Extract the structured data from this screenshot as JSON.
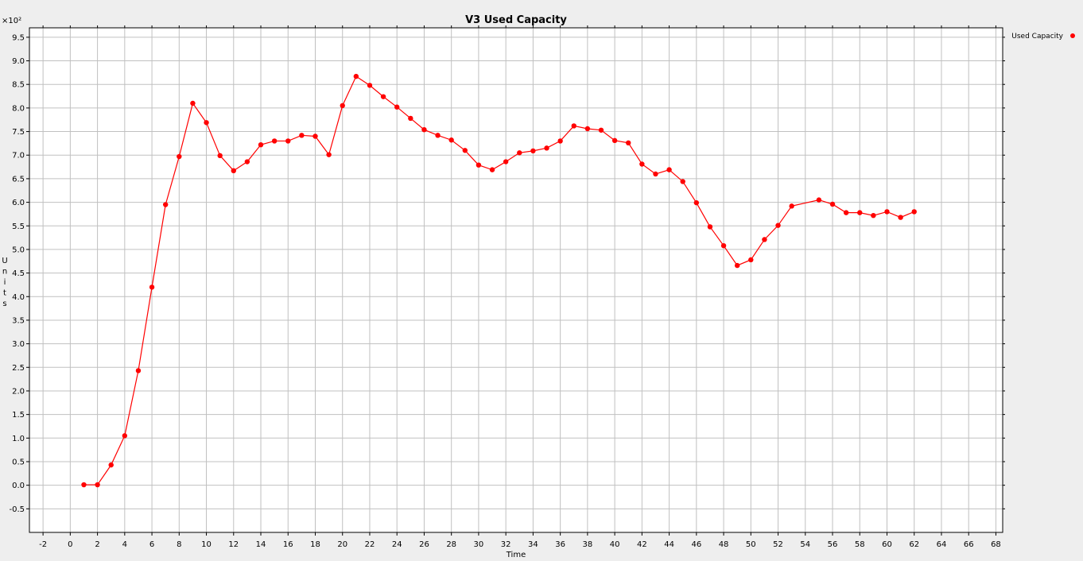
{
  "chart_data": {
    "type": "line",
    "title": "V3 Used Capacity",
    "xlabel": "Time",
    "ylabel": "Units",
    "y_multiplier": "×10²",
    "xlim": [
      -3,
      68.5
    ],
    "ylim": [
      -1,
      9.7
    ],
    "x_ticks": [
      -2,
      0,
      2,
      4,
      6,
      8,
      10,
      12,
      14,
      16,
      18,
      20,
      22,
      24,
      26,
      28,
      30,
      32,
      34,
      36,
      38,
      40,
      42,
      44,
      46,
      48,
      50,
      52,
      54,
      56,
      58,
      60,
      62,
      64,
      66,
      68
    ],
    "y_ticks": [
      "-0.5",
      "0.0",
      "0.5",
      "1.0",
      "1.5",
      "2.0",
      "2.5",
      "3.0",
      "3.5",
      "4.0",
      "4.5",
      "5.0",
      "5.5",
      "6.0",
      "6.5",
      "7.0",
      "7.5",
      "8.0",
      "8.5",
      "9.0",
      "9.5"
    ],
    "grid": true,
    "legend_position": "top-right",
    "series": [
      {
        "name": "Used Capacity",
        "color": "#ff0000",
        "x": [
          1,
          2,
          3,
          4,
          5,
          6,
          7,
          8,
          9,
          10,
          11,
          12,
          13,
          14,
          15,
          16,
          17,
          18,
          19,
          20,
          21,
          22,
          23,
          24,
          25,
          26,
          27,
          28,
          29,
          30,
          31,
          32,
          33,
          34,
          35,
          36,
          37,
          38,
          39,
          40,
          41,
          42,
          43,
          44,
          45,
          46,
          47,
          48,
          49,
          50,
          51,
          52,
          53,
          55,
          56,
          57,
          58,
          59,
          60,
          61,
          62
        ],
        "y": [
          0.01,
          0.01,
          0.43,
          1.05,
          2.43,
          4.2,
          5.95,
          6.97,
          8.1,
          7.69,
          6.99,
          6.67,
          6.86,
          7.22,
          7.3,
          7.3,
          7.42,
          7.4,
          7.01,
          8.05,
          8.67,
          8.48,
          8.24,
          8.02,
          7.78,
          7.54,
          7.42,
          7.32,
          7.1,
          6.79,
          6.69,
          6.86,
          7.05,
          7.09,
          7.15,
          7.3,
          7.62,
          7.56,
          7.53,
          7.31,
          7.26,
          6.81,
          6.6,
          6.69,
          6.44,
          5.99,
          5.48,
          5.08,
          4.66,
          4.78,
          5.21,
          5.51,
          5.92,
          6.05,
          5.96,
          5.78,
          5.78,
          5.72,
          5.8,
          5.68,
          5.8
        ]
      }
    ]
  }
}
